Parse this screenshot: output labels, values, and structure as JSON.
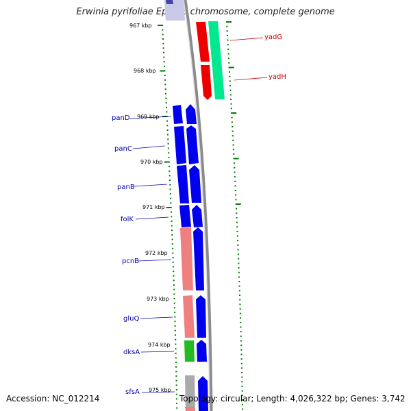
{
  "title": "Erwinia pyrifoliae Ep1/96 chromosome, complete genome",
  "footer": {
    "accession": "Accession: NC_012214",
    "topology": "Topology: circular; Length: 4,026,322 bp; Genes: 3,742"
  },
  "scale": {
    "unit": "kbp",
    "ticks": [
      {
        "label": "967 kbp"
      },
      {
        "label": "968 kbp"
      },
      {
        "label": "969 kbp"
      },
      {
        "label": "970 kbp"
      },
      {
        "label": "971 kbp"
      },
      {
        "label": "972 kbp"
      },
      {
        "label": "973 kbp"
      },
      {
        "label": "974 kbp"
      },
      {
        "label": "975 kbp"
      }
    ]
  },
  "genes": [
    {
      "name": "yadG"
    },
    {
      "name": "yadH"
    },
    {
      "name": "panD"
    },
    {
      "name": "panC"
    },
    {
      "name": "panB"
    },
    {
      "name": "folK"
    },
    {
      "name": "pcnB"
    },
    {
      "name": "gluQ"
    },
    {
      "name": "dksA"
    },
    {
      "name": "sfsA"
    }
  ],
  "colors": {
    "backbone": "#8a8a8a",
    "cds": "#0000ee",
    "cds_right_top": "#ee0000",
    "cds_right_top2": "#00e890",
    "feature_pink": "#f08080",
    "feature_green": "#22bb22",
    "feature_gray": "#aaaaaa",
    "tick": "#007700",
    "label_blue": "#0000aa",
    "label_red": "#cc0000"
  }
}
